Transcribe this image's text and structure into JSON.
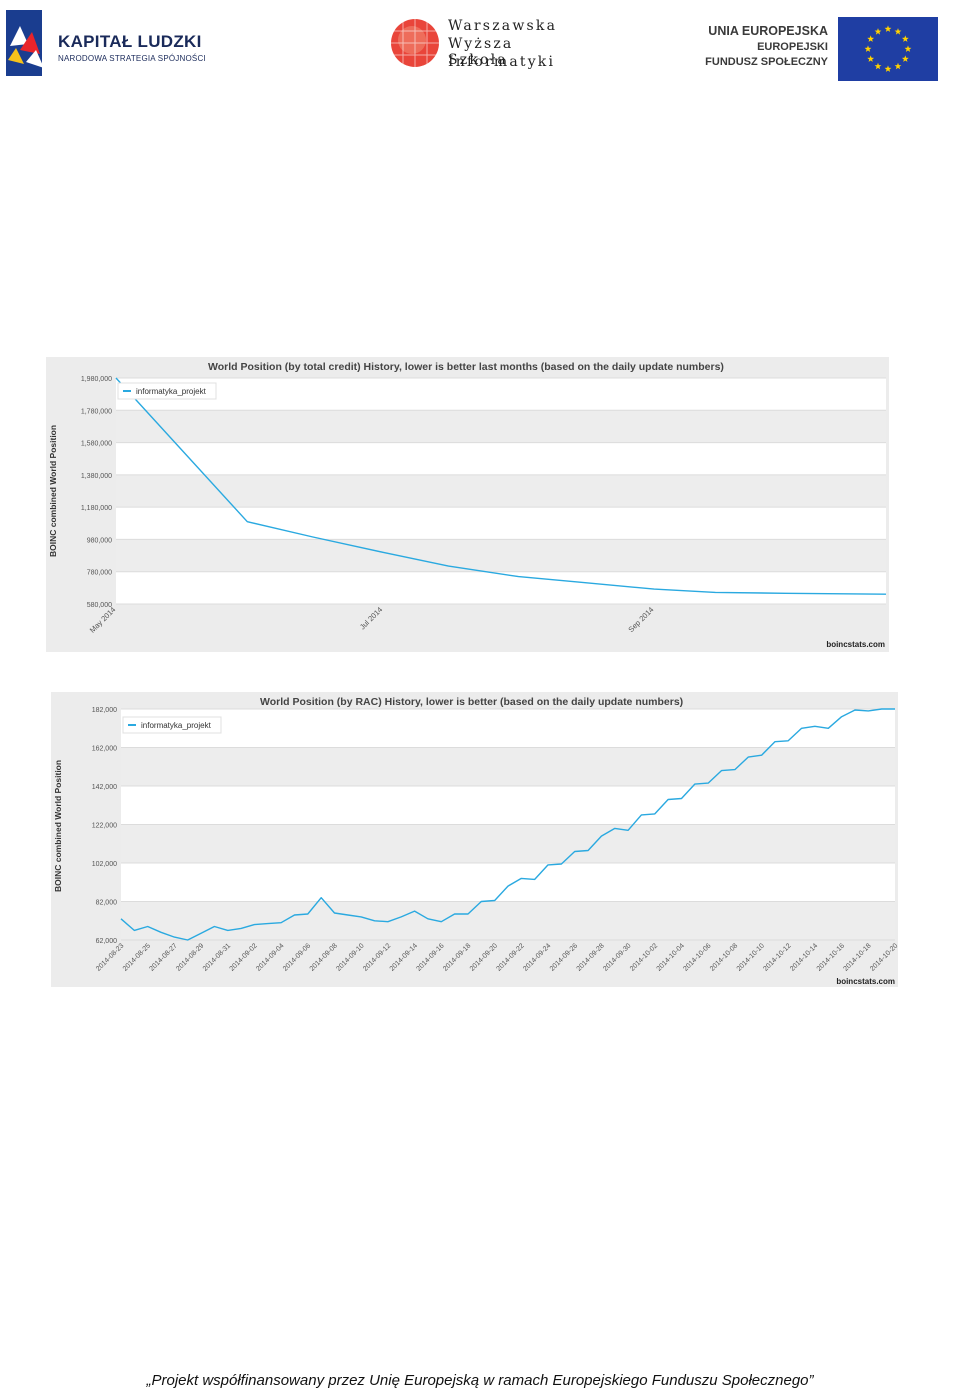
{
  "header": {
    "kapital_title": "KAPITAŁ LUDZKI",
    "kapital_sub": "NARODOWA STRATEGIA SPÓJNOŚCI",
    "wwsi_lines": [
      "Warszawska",
      "Wyższa Szkoła",
      "Informatyki"
    ],
    "ue_line1": "UNIA EUROPEJSKA",
    "ue_line2": "EUROPEJSKI",
    "ue_line3": "FUNDUSZ SPOŁECZNY"
  },
  "chart_data": [
    {
      "type": "line",
      "title": "World Position (by total credit) History, lower is better last months (based on the daily update numbers)",
      "ylabel": "BOINC combined World Position",
      "credit": "boincstats.com",
      "y_ticks": [
        "1,980,000",
        "1,780,000",
        "1,580,000",
        "1,380,000",
        "1,180,000",
        "980,000",
        "780,000",
        "580,000"
      ],
      "y_tick_values": [
        1980000,
        1780000,
        1580000,
        1380000,
        1180000,
        980000,
        780000,
        580000
      ],
      "ylim": [
        580000,
        1980000
      ],
      "x_tick_labels": [
        "May 2014",
        "Jul 2014",
        "Sep 2014"
      ],
      "x_tick_dates": [
        "2014-05-01",
        "2014-07-01",
        "2014-09-01"
      ],
      "xlim": [
        "2014-05-01",
        "2014-10-24"
      ],
      "grid": true,
      "legend_position": "top-left",
      "series": [
        {
          "name": "informatyka_projekt",
          "color": "#2aa9e0",
          "x": [
            "2014-05-01",
            "2014-05-31",
            "2014-06-15",
            "2014-07-01",
            "2014-07-16",
            "2014-08-01",
            "2014-08-15",
            "2014-09-01",
            "2014-09-15",
            "2014-10-01",
            "2014-10-24"
          ],
          "y": [
            1990000,
            1090000,
            995000,
            900000,
            815000,
            750000,
            715000,
            672000,
            652000,
            646000,
            641000
          ]
        }
      ]
    },
    {
      "type": "line",
      "title": "World Position (by RAC) History, lower is better  (based on the daily update numbers)",
      "ylabel": "BOINC combined World Position",
      "credit": "boincstats.com",
      "y_ticks": [
        "182,000",
        "162,000",
        "142,000",
        "122,000",
        "102,000",
        "82,000",
        "62,000"
      ],
      "y_tick_values": [
        182000,
        162000,
        142000,
        122000,
        102000,
        82000,
        62000
      ],
      "ylim": [
        62000,
        182000
      ],
      "x_tick_labels": [
        "2014-08-23",
        "2014-08-25",
        "2014-08-27",
        "2014-08-29",
        "2014-08-31",
        "2014-09-02",
        "2014-09-04",
        "2014-09-06",
        "2014-09-08",
        "2014-09-10",
        "2014-09-12",
        "2014-09-14",
        "2014-09-16",
        "2014-09-18",
        "2014-09-20",
        "2014-09-22",
        "2014-09-24",
        "2014-09-26",
        "2014-09-28",
        "2014-09-30",
        "2014-10-02",
        "2014-10-04",
        "2014-10-06",
        "2014-10-08",
        "2014-10-10",
        "2014-10-12",
        "2014-10-14",
        "2014-10-16",
        "2014-10-18",
        "2014-10-20"
      ],
      "grid": true,
      "legend_position": "top-left",
      "series": [
        {
          "name": "informatyka_projekt",
          "color": "#2aa9e0",
          "x": [
            "2014-08-23",
            "2014-08-24",
            "2014-08-25",
            "2014-08-26",
            "2014-08-27",
            "2014-08-28",
            "2014-08-29",
            "2014-08-30",
            "2014-08-31",
            "2014-09-01",
            "2014-09-02",
            "2014-09-03",
            "2014-09-04",
            "2014-09-05",
            "2014-09-06",
            "2014-09-07",
            "2014-09-08",
            "2014-09-09",
            "2014-09-10",
            "2014-09-11",
            "2014-09-12",
            "2014-09-13",
            "2014-09-14",
            "2014-09-15",
            "2014-09-16",
            "2014-09-17",
            "2014-09-18",
            "2014-09-19",
            "2014-09-20",
            "2014-09-21",
            "2014-09-22",
            "2014-09-23",
            "2014-09-24",
            "2014-09-25",
            "2014-09-26",
            "2014-09-27",
            "2014-09-28",
            "2014-09-29",
            "2014-09-30",
            "2014-10-01",
            "2014-10-02",
            "2014-10-03",
            "2014-10-04",
            "2014-10-05",
            "2014-10-06",
            "2014-10-07",
            "2014-10-08",
            "2014-10-09",
            "2014-10-10",
            "2014-10-11",
            "2014-10-12",
            "2014-10-13",
            "2014-10-14",
            "2014-10-15",
            "2014-10-16",
            "2014-10-17",
            "2014-10-18",
            "2014-10-19",
            "2014-10-20"
          ],
          "y": [
            73000,
            67000,
            69000,
            66000,
            63500,
            62000,
            65500,
            69000,
            67000,
            68000,
            70000,
            70500,
            71000,
            75000,
            75500,
            84000,
            76000,
            75000,
            74000,
            72000,
            71500,
            74000,
            77000,
            73000,
            71500,
            75500,
            75500,
            82000,
            82500,
            90000,
            94000,
            93500,
            101000,
            101500,
            108000,
            108500,
            116000,
            120000,
            119000,
            127000,
            127500,
            135000,
            135500,
            143000,
            143500,
            150000,
            150500,
            157000,
            158000,
            165000,
            165500,
            172000,
            173000,
            172000,
            178000,
            181500,
            181000,
            186000,
            186000
          ]
        }
      ]
    }
  ],
  "footer": {
    "text": "„Projekt współfinansowany przez Unię Europejską w ramach Europejskiego Funduszu Społecznego”"
  }
}
